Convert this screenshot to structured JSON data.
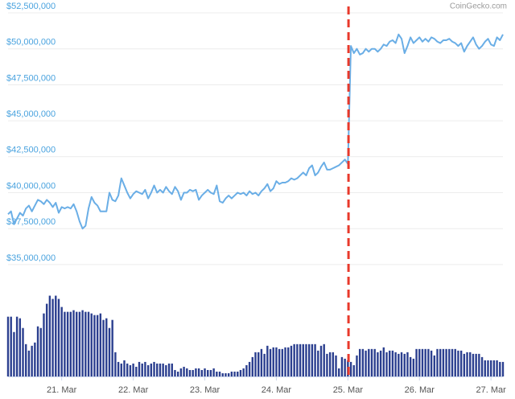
{
  "chart_data": {
    "type": "line",
    "source": "CoinGecko.com",
    "xlim": [
      0,
      166
    ],
    "xticks": [
      {
        "value": 18,
        "label": "21. Mar"
      },
      {
        "value": 42,
        "label": "22. Mar"
      },
      {
        "value": 66,
        "label": "23. Mar"
      },
      {
        "value": 90,
        "label": "24. Mar"
      },
      {
        "value": 114,
        "label": "25. Mar"
      },
      {
        "value": 138,
        "label": "26. Mar"
      },
      {
        "value": 162,
        "label": "27. Mar"
      }
    ],
    "ylim": [
      27220000,
      52500000
    ],
    "yticks": [
      {
        "value": 35000000,
        "label": "$35,000,000"
      },
      {
        "value": 37500000,
        "label": "$37,500,000"
      },
      {
        "value": 40000000,
        "label": "$40,000,000"
      },
      {
        "value": 42500000,
        "label": "$42,500,000"
      },
      {
        "value": 45000000,
        "label": "$45,000,000"
      },
      {
        "value": 47500000,
        "label": "$47,500,000"
      },
      {
        "value": 50000000,
        "label": "$50,000,000"
      },
      {
        "value": 52500000,
        "label": "$52,500,000"
      }
    ],
    "y2lim": [
      0,
      450
    ],
    "grid": true,
    "vline": {
      "x": 114.2,
      "color": "#e8392b"
    },
    "series": [
      {
        "type": "line",
        "color": "#6aaee6",
        "values": [
          38500000,
          38700000,
          37800000,
          38200000,
          38600000,
          38400000,
          38900000,
          39100000,
          38700000,
          39100000,
          39500000,
          39400000,
          39200000,
          39500000,
          39300000,
          39000000,
          39300000,
          38600000,
          39000000,
          38900000,
          39000000,
          38900000,
          39200000,
          38700000,
          38000000,
          37500000,
          37700000,
          38900000,
          39700000,
          39300000,
          39100000,
          38700000,
          38700000,
          38700000,
          40000000,
          39500000,
          39400000,
          39800000,
          41000000,
          40500000,
          40000000,
          39600000,
          39900000,
          40100000,
          40000000,
          39900000,
          40200000,
          39600000,
          40000000,
          40500000,
          40000000,
          40200000,
          40000000,
          40400000,
          40100000,
          39900000,
          40400000,
          40100000,
          39500000,
          40000000,
          40000000,
          40200000,
          40100000,
          40200000,
          39500000,
          39800000,
          40000000,
          40200000,
          40000000,
          39900000,
          40500000,
          39400000,
          39300000,
          39600000,
          39800000,
          39600000,
          39800000,
          40000000,
          39900000,
          40000000,
          39800000,
          40100000,
          39900000,
          40000000,
          39800000,
          40100000,
          40300000,
          40600000,
          40100000,
          40300000,
          40800000,
          40600000,
          40700000,
          40700000,
          40800000,
          41000000,
          40900000,
          41000000,
          41200000,
          41400000,
          41200000,
          41700000,
          41900000,
          41200000,
          41400000,
          41800000,
          42100000,
          41600000,
          41600000,
          41700000,
          41800000,
          41900000,
          42100000,
          42300000,
          42000000,
          50200000,
          49700000,
          50000000,
          49600000,
          49700000,
          50000000,
          49800000,
          50000000,
          50000000,
          49800000,
          50000000,
          50300000,
          50200000,
          50500000,
          50600000,
          50400000,
          51000000,
          50700000,
          49700000,
          50200000,
          50800000,
          50400000,
          50600000,
          50800000,
          50500000,
          50700000,
          50500000,
          50800000,
          50700000,
          50500000,
          50400000,
          50600000,
          50600000,
          50700000,
          50500000,
          50400000,
          50200000,
          50400000,
          49800000,
          50200000,
          50500000,
          50800000,
          50300000,
          50000000,
          50200000,
          50500000,
          50700000,
          50300000,
          50200000,
          50800000,
          50600000,
          51000000
        ]
      },
      {
        "type": "bar",
        "axis": "y2",
        "color": "#2b3f8f",
        "values": [
          74,
          74,
          55,
          74,
          72,
          60,
          40,
          32,
          38,
          42,
          62,
          60,
          78,
          90,
          100,
          96,
          100,
          96,
          86,
          80,
          80,
          80,
          82,
          80,
          80,
          82,
          80,
          80,
          78,
          76,
          76,
          78,
          70,
          72,
          60,
          70,
          30,
          18,
          16,
          20,
          16,
          14,
          16,
          12,
          18,
          16,
          18,
          14,
          16,
          18,
          16,
          16,
          16,
          14,
          16,
          16,
          8,
          6,
          10,
          12,
          10,
          8,
          8,
          10,
          10,
          8,
          10,
          8,
          8,
          10,
          6,
          6,
          4,
          4,
          4,
          6,
          6,
          6,
          8,
          10,
          14,
          18,
          24,
          30,
          30,
          34,
          28,
          38,
          34,
          36,
          36,
          34,
          34,
          36,
          36,
          38,
          40,
          40,
          40,
          40,
          40,
          40,
          40,
          40,
          32,
          38,
          40,
          28,
          30,
          30,
          26,
          10,
          24,
          22,
          20,
          18,
          14,
          26,
          34,
          34,
          32,
          34,
          34,
          34,
          30,
          32,
          36,
          30,
          32,
          32,
          30,
          28,
          30,
          28,
          30,
          24,
          22,
          34,
          34,
          34,
          34,
          34,
          32,
          26,
          34,
          34,
          34,
          34,
          34,
          34,
          34,
          32,
          32,
          28,
          30,
          30,
          28,
          28,
          28,
          24,
          20,
          20,
          20,
          20,
          20,
          18,
          18
        ]
      }
    ]
  }
}
